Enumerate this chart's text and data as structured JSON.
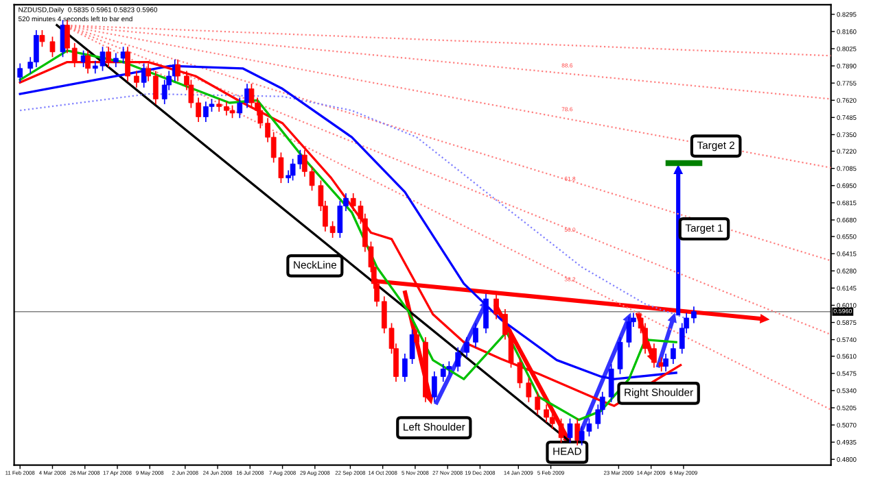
{
  "chart_data": {
    "type": "candlestick",
    "title": "NZDUSD,Daily  0.5835 0.5961 0.5823 0.5960",
    "subtitle": "520 minutes 4 seconds left to bar end",
    "xlim": [
      "2008-02-07",
      "2009-08-14"
    ],
    "ylim": [
      0.4755,
      0.837
    ],
    "xticks": [
      {
        "value": "2008-02-11",
        "label": "11 Feb 2008"
      },
      {
        "value": "2008-03-04",
        "label": "4 Mar 2008"
      },
      {
        "value": "2008-03-26",
        "label": "26 Mar 2008"
      },
      {
        "value": "2008-04-17",
        "label": "17 Apr 2008"
      },
      {
        "value": "2008-05-09",
        "label": "9 May 2008"
      },
      {
        "value": "2008-06-02",
        "label": "2 Jun 2008"
      },
      {
        "value": "2008-06-24",
        "label": "24 Jun 2008"
      },
      {
        "value": "2008-07-16",
        "label": "16 Jul 2008"
      },
      {
        "value": "2008-08-07",
        "label": "7 Aug 2008"
      },
      {
        "value": "2008-08-29",
        "label": "29 Aug 2008"
      },
      {
        "value": "2008-09-22",
        "label": "22 Sep 2008"
      },
      {
        "value": "2008-10-14",
        "label": "14 Oct 2008"
      },
      {
        "value": "2008-11-05",
        "label": "5 Nov 2008"
      },
      {
        "value": "2008-11-27",
        "label": "27 Nov 2008"
      },
      {
        "value": "2008-12-19",
        "label": "19 Dec 2008"
      },
      {
        "value": "2009-01-14",
        "label": "14 Jan 2009"
      },
      {
        "value": "2009-02-05",
        "label": "5 Feb 2009"
      },
      {
        "value": "2009-03-23",
        "label": "23 Mar 2009"
      },
      {
        "value": "2009-04-14",
        "label": "14 Apr 2009"
      },
      {
        "value": "2009-05-06",
        "label": "6 May 2009"
      }
    ],
    "yticks": [
      0.8295,
      {
        "value": 0.816,
        "label": "0.8160"
      },
      0.8025,
      {
        "value": 0.789,
        "label": "0.7890"
      },
      0.7755,
      {
        "value": 0.762,
        "label": "0.7620"
      },
      0.7485,
      {
        "value": 0.735,
        "label": "0.7350"
      },
      {
        "value": 0.722,
        "label": "0.7220"
      },
      0.7085,
      {
        "value": 0.695,
        "label": "0.6950"
      },
      0.6815,
      {
        "value": 0.668,
        "label": "0.6680"
      },
      {
        "value": 0.655,
        "label": "0.6550"
      },
      0.6415,
      {
        "value": 0.628,
        "label": "0.6280"
      },
      0.6145,
      {
        "value": 0.601,
        "label": "0.6010"
      },
      0.5875,
      {
        "value": 0.574,
        "label": "0.5740"
      },
      {
        "value": 0.561,
        "label": "0.5610"
      },
      0.5475,
      {
        "value": 0.534,
        "label": "0.5340"
      },
      0.5205,
      {
        "value": 0.507,
        "label": "0.5070"
      },
      0.4935,
      {
        "value": 0.48,
        "label": "0.4800"
      }
    ],
    "ref_lines": [
      {
        "axis": "y",
        "value": 0.596,
        "label": "0.5960",
        "color": "#808080"
      }
    ],
    "annotations": [
      {
        "text": "NeckLine",
        "x": "2008-08-29",
        "y": 0.632
      },
      "Left Shoulder",
      "HEAD",
      "Right Shoulder",
      {
        "text": "Target 1",
        "x": "2009-05-20",
        "y": 0.661
      },
      {
        "text": "Target 2",
        "x": "2009-05-28",
        "y": 0.726
      },
      "88.6",
      "78.6",
      {
        "text": "61.8",
        "x": "2009-02-18",
        "y": 0.7
      },
      {
        "text": "50.0",
        "x": "2009-02-18",
        "y": 0.66
      },
      {
        "text": "38.2",
        "x": "2009-02-18",
        "y": 0.621
      }
    ],
    "series": [
      {
        "type": "line",
        "color": "#ff8080",
        "line_style": "dotted",
        "x": [
          "2008-03-11",
          "2009-08-14"
        ],
        "values": [
          0.821,
          0.797
        ]
      },
      {
        "type": "line",
        "color": "#ff8080",
        "line_style": "dotted",
        "x": [
          "2008-03-11",
          "2009-08-14"
        ],
        "values": [
          0.821,
          0.763
        ]
      },
      {
        "type": "line",
        "color": "#ff8080",
        "line_style": "dotted",
        "x": [
          "2008-03-11",
          "2009-08-14"
        ],
        "values": [
          0.821,
          0.709
        ]
      },
      {
        "type": "line",
        "color": "#ff8080",
        "line_style": "dotted",
        "x": [
          "2008-03-11",
          "2009-08-14"
        ],
        "values": [
          0.821,
          0.636
        ]
      },
      {
        "type": "line",
        "color": "#ff8080",
        "line_style": "dotted",
        "x": [
          "2008-03-11",
          "2009-08-14"
        ],
        "values": [
          0.821,
          0.578
        ]
      },
      {
        "type": "line",
        "color": "#ff8080",
        "line_style": "dotted",
        "x": [
          "2008-03-11",
          "2009-08-14"
        ],
        "values": [
          0.821,
          0.519
        ]
      },
      {
        "type": "line",
        "color": "#000000",
        "line_style": "solid",
        "x": [
          "2008-03-07",
          "2009-02-20"
        ],
        "values": [
          0.821,
          0.492
        ]
      },
      {
        "type": "line",
        "color": "#8080ff",
        "line_style": "dotted",
        "x": [
          "2008-02-11",
          "2008-05-08",
          "2008-08-07",
          "2008-09-23",
          "2008-11-06",
          "2008-12-23",
          "2009-02-26",
          "2009-04-10",
          "2009-05-07"
        ],
        "values": [
          0.754,
          0.767,
          0.765,
          0.754,
          0.733,
          0.69,
          0.631,
          0.602,
          0.591
        ]
      },
      {
        "type": "line",
        "color": "#0000ff",
        "line_style": "solid",
        "x": [
          "2008-02-11",
          "2008-04-02",
          "2008-05-23",
          "2008-07-11",
          "2008-08-07",
          "2008-09-23",
          "2008-10-29",
          "2008-12-08",
          "2009-01-02",
          "2009-02-09",
          "2009-03-11",
          "2009-03-20",
          "2009-05-01"
        ],
        "values": [
          0.767,
          0.778,
          0.789,
          0.787,
          0.771,
          0.733,
          0.69,
          0.618,
          0.59,
          0.558,
          0.545,
          0.543,
          0.548
        ]
      },
      {
        "type": "line",
        "color": "#ff0000",
        "line_style": "solid",
        "x": [
          "2008-02-11",
          "2008-03-14",
          "2008-05-08",
          "2008-06-09",
          "2008-07-11",
          "2008-08-07",
          "2008-09-09",
          "2008-10-06",
          "2008-10-20",
          "2008-11-17",
          "2008-12-08",
          "2009-01-02",
          "2009-01-28",
          "2009-03-11",
          "2009-03-20",
          "2009-04-14",
          "2009-05-04"
        ],
        "values": [
          0.776,
          0.792,
          0.792,
          0.781,
          0.76,
          0.744,
          0.701,
          0.658,
          0.653,
          0.594,
          0.572,
          0.559,
          0.547,
          0.526,
          0.522,
          0.54,
          0.554
        ]
      },
      {
        "type": "line",
        "color": "#00c000",
        "line_style": "solid",
        "x": [
          "2008-02-11",
          "2008-03-14",
          "2008-04-21",
          "2008-05-27",
          "2008-07-02",
          "2008-07-21",
          "2008-08-21",
          "2008-09-23",
          "2008-10-10",
          "2008-10-31",
          "2008-11-17",
          "2008-12-08",
          "2009-01-06",
          "2009-01-28",
          "2009-02-24",
          "2009-03-11",
          "2009-03-30",
          "2009-04-10",
          "2009-05-01"
        ],
        "values": [
          0.778,
          0.801,
          0.792,
          0.776,
          0.76,
          0.762,
          0.717,
          0.674,
          0.631,
          0.597,
          0.558,
          0.543,
          0.58,
          0.529,
          0.511,
          0.518,
          0.543,
          0.574,
          0.572
        ]
      },
      {
        "x": [
          "2008-02-11",
          "2008-02-18",
          "2008-02-22",
          "2008-02-26",
          "2008-03-04",
          "2008-03-11",
          "2008-03-14",
          "2008-03-19",
          "2008-03-25",
          "2008-03-28",
          "2008-04-02",
          "2008-04-07",
          "2008-04-11",
          "2008-04-16",
          "2008-04-21",
          "2008-04-24",
          "2008-04-30",
          "2008-05-05",
          "2008-05-08",
          "2008-05-13",
          "2008-05-19",
          "2008-05-22",
          "2008-05-26",
          "2008-05-28",
          "2008-06-03",
          "2008-06-06",
          "2008-06-11",
          "2008-06-16",
          "2008-06-20",
          "2008-06-25",
          "2008-06-30",
          "2008-07-04",
          "2008-07-09",
          "2008-07-14",
          "2008-07-17",
          "2008-07-21",
          "2008-07-23",
          "2008-07-28",
          "2008-08-01",
          "2008-08-06",
          "2008-08-11",
          "2008-08-14",
          "2008-08-19",
          "2008-08-22",
          "2008-08-27",
          "2008-09-02",
          "2008-09-05",
          "2008-09-10",
          "2008-09-15",
          "2008-09-19",
          "2008-09-24",
          "2008-09-29",
          "2008-10-02",
          "2008-10-06",
          "2008-10-08",
          "2008-10-10",
          "2008-10-15",
          "2008-10-20",
          "2008-10-23",
          "2008-10-29",
          "2008-11-03",
          "2008-11-06",
          "2008-11-12",
          "2008-11-18",
          "2008-11-24",
          "2008-11-28",
          "2008-12-04",
          "2008-12-10",
          "2008-12-16",
          "2008-12-23",
          "2008-12-30",
          "2009-01-05",
          "2009-01-09",
          "2009-01-15",
          "2009-01-21",
          "2009-01-27",
          "2009-02-02",
          "2009-02-06",
          "2009-02-12",
          "2009-02-18",
          "2009-02-23",
          "2009-02-26",
          "2009-03-03",
          "2009-03-09",
          "2009-03-12",
          "2009-03-18",
          "2009-03-24",
          "2009-03-30",
          "2009-04-02",
          "2009-04-07",
          "2009-04-10",
          "2009-04-16",
          "2009-04-21",
          "2009-04-24",
          "2009-04-29",
          "2009-05-05",
          "2009-05-08",
          "2009-05-13"
        ],
        "ohlc": [
          [
            0.78,
            0.791,
            0.776,
            0.787
          ],
          [
            0.787,
            0.796,
            0.783,
            0.792
          ],
          [
            0.792,
            0.817,
            0.788,
            0.813
          ],
          [
            0.813,
            0.817,
            0.804,
            0.808
          ],
          [
            0.808,
            0.812,
            0.796,
            0.8
          ],
          [
            0.8,
            0.825,
            0.796,
            0.821
          ],
          [
            0.821,
            0.825,
            0.799,
            0.803
          ],
          [
            0.803,
            0.807,
            0.788,
            0.792
          ],
          [
            0.792,
            0.801,
            0.788,
            0.797
          ],
          [
            0.797,
            0.801,
            0.783,
            0.787
          ],
          [
            0.787,
            0.793,
            0.783,
            0.789
          ],
          [
            0.789,
            0.804,
            0.785,
            0.8
          ],
          [
            0.8,
            0.804,
            0.788,
            0.792
          ],
          [
            0.792,
            0.799,
            0.788,
            0.795
          ],
          [
            0.795,
            0.804,
            0.791,
            0.8
          ],
          [
            0.8,
            0.804,
            0.777,
            0.781
          ],
          [
            0.781,
            0.785,
            0.772,
            0.776
          ],
          [
            0.776,
            0.791,
            0.772,
            0.787
          ],
          [
            0.787,
            0.791,
            0.777,
            0.781
          ],
          [
            0.781,
            0.785,
            0.759,
            0.763
          ],
          [
            0.763,
            0.778,
            0.759,
            0.774
          ],
          [
            0.774,
            0.785,
            0.77,
            0.781
          ],
          [
            0.781,
            0.794,
            0.777,
            0.79
          ],
          [
            0.79,
            0.794,
            0.777,
            0.781
          ],
          [
            0.781,
            0.785,
            0.77,
            0.774
          ],
          [
            0.774,
            0.778,
            0.756,
            0.76
          ],
          [
            0.76,
            0.764,
            0.745,
            0.749
          ],
          [
            0.749,
            0.761,
            0.745,
            0.757
          ],
          [
            0.757,
            0.763,
            0.753,
            0.759
          ],
          [
            0.759,
            0.763,
            0.753,
            0.757
          ],
          [
            0.757,
            0.761,
            0.75,
            0.754
          ],
          [
            0.754,
            0.758,
            0.748,
            0.752
          ],
          [
            0.752,
            0.764,
            0.748,
            0.76
          ],
          [
            0.76,
            0.775,
            0.756,
            0.771
          ],
          [
            0.771,
            0.775,
            0.756,
            0.76
          ],
          [
            0.76,
            0.764,
            0.75,
            0.754
          ],
          [
            0.754,
            0.758,
            0.74,
            0.744
          ],
          [
            0.744,
            0.748,
            0.729,
            0.733
          ],
          [
            0.733,
            0.737,
            0.713,
            0.717
          ],
          [
            0.717,
            0.721,
            0.697,
            0.701
          ],
          [
            0.701,
            0.707,
            0.697,
            0.703
          ],
          [
            0.703,
            0.716,
            0.699,
            0.712
          ],
          [
            0.712,
            0.723,
            0.708,
            0.719
          ],
          [
            0.719,
            0.723,
            0.702,
            0.706
          ],
          [
            0.706,
            0.71,
            0.691,
            0.695
          ],
          [
            0.695,
            0.699,
            0.675,
            0.679
          ],
          [
            0.679,
            0.683,
            0.659,
            0.663
          ],
          [
            0.663,
            0.667,
            0.654,
            0.658
          ],
          [
            0.658,
            0.683,
            0.654,
            0.679
          ],
          [
            0.679,
            0.689,
            0.675,
            0.685
          ],
          [
            0.685,
            0.689,
            0.675,
            0.679
          ],
          [
            0.679,
            0.683,
            0.665,
            0.669
          ],
          [
            0.669,
            0.673,
            0.643,
            0.647
          ],
          [
            0.647,
            0.651,
            0.627,
            0.631
          ],
          [
            0.631,
            0.635,
            0.614,
            0.618
          ],
          [
            0.618,
            0.622,
            0.6,
            0.604
          ],
          [
            0.604,
            0.608,
            0.579,
            0.583
          ],
          [
            0.583,
            0.587,
            0.563,
            0.567
          ],
          [
            0.567,
            0.571,
            0.541,
            0.545
          ],
          [
            0.545,
            0.563,
            0.541,
            0.559
          ],
          [
            0.559,
            0.582,
            0.555,
            0.578
          ],
          [
            0.578,
            0.582,
            0.568,
            0.572
          ],
          [
            0.572,
            0.576,
            0.525,
            0.529
          ],
          [
            0.529,
            0.549,
            0.525,
            0.545
          ],
          [
            0.545,
            0.555,
            0.541,
            0.551
          ],
          [
            0.551,
            0.557,
            0.547,
            0.553
          ],
          [
            0.553,
            0.568,
            0.549,
            0.564
          ],
          [
            0.564,
            0.576,
            0.56,
            0.572
          ],
          [
            0.572,
            0.587,
            0.568,
            0.583
          ],
          [
            0.583,
            0.61,
            0.579,
            0.606
          ],
          [
            0.606,
            0.61,
            0.59,
            0.594
          ],
          [
            0.594,
            0.598,
            0.574,
            0.578
          ],
          [
            0.578,
            0.582,
            0.552,
            0.556
          ],
          [
            0.556,
            0.56,
            0.536,
            0.54
          ],
          [
            0.54,
            0.544,
            0.525,
            0.529
          ],
          [
            0.529,
            0.533,
            0.515,
            0.519
          ],
          [
            0.519,
            0.523,
            0.509,
            0.513
          ],
          [
            0.513,
            0.517,
            0.504,
            0.508
          ],
          [
            0.508,
            0.512,
            0.493,
            0.497
          ],
          [
            0.497,
            0.512,
            0.493,
            0.508
          ],
          [
            0.508,
            0.512,
            0.491,
            0.495
          ],
          [
            0.495,
            0.506,
            0.491,
            0.502
          ],
          [
            0.502,
            0.512,
            0.498,
            0.508
          ],
          [
            0.508,
            0.523,
            0.504,
            0.519
          ],
          [
            0.519,
            0.533,
            0.515,
            0.529
          ],
          [
            0.529,
            0.555,
            0.525,
            0.551
          ],
          [
            0.551,
            0.576,
            0.547,
            0.572
          ],
          [
            0.572,
            0.592,
            0.568,
            0.588
          ],
          [
            0.588,
            0.595,
            0.584,
            0.591
          ],
          [
            0.591,
            0.595,
            0.579,
            0.583
          ],
          [
            0.583,
            0.587,
            0.563,
            0.567
          ],
          [
            0.567,
            0.571,
            0.552,
            0.556
          ],
          [
            0.556,
            0.56,
            0.549,
            0.553
          ],
          [
            0.553,
            0.563,
            0.549,
            0.559
          ],
          [
            0.559,
            0.571,
            0.555,
            0.567
          ],
          [
            0.567,
            0.587,
            0.563,
            0.583
          ],
          [
            0.583,
            0.595,
            0.579,
            0.591
          ],
          [
            0.591,
            0.6,
            0.587,
            0.596
          ]
        ],
        "colors": [
          "#0000ff",
          "#0000ff",
          "#0000ff",
          "#ff0000",
          "#ff0000",
          "#0000ff",
          "#ff0000",
          "#ff0000",
          "#0000ff",
          "#ff0000",
          "#0000ff",
          "#0000ff",
          "#ff0000",
          "#0000ff",
          "#0000ff",
          "#ff0000",
          "#ff0000",
          "#0000ff",
          "#ff0000",
          "#ff0000",
          "#0000ff",
          "#0000ff",
          "#0000ff",
          "#ff0000",
          "#ff0000",
          "#ff0000",
          "#ff0000",
          "#0000ff",
          "#0000ff",
          "#ff0000",
          "#ff0000",
          "#ff0000",
          "#0000ff",
          "#0000ff",
          "#ff0000",
          "#ff0000",
          "#ff0000",
          "#ff0000",
          "#ff0000",
          "#ff0000",
          "#0000ff",
          "#0000ff",
          "#0000ff",
          "#ff0000",
          "#ff0000",
          "#ff0000",
          "#ff0000",
          "#ff0000",
          "#0000ff",
          "#0000ff",
          "#ff0000",
          "#ff0000",
          "#ff0000",
          "#ff0000",
          "#ff0000",
          "#ff0000",
          "#ff0000",
          "#ff0000",
          "#ff0000",
          "#0000ff",
          "#0000ff",
          "#ff0000",
          "#ff0000",
          "#0000ff",
          "#0000ff",
          "#0000ff",
          "#0000ff",
          "#0000ff",
          "#0000ff",
          "#0000ff",
          "#ff0000",
          "#ff0000",
          "#ff0000",
          "#ff0000",
          "#ff0000",
          "#ff0000",
          "#ff0000",
          "#ff0000",
          "#ff0000",
          "#0000ff",
          "#ff0000",
          "#0000ff",
          "#0000ff",
          "#0000ff",
          "#0000ff",
          "#0000ff",
          "#0000ff",
          "#0000ff",
          "#0000ff",
          "#ff0000",
          "#ff0000",
          "#ff0000",
          "#ff0000",
          "#0000ff",
          "#0000ff",
          "#0000ff",
          "#0000ff",
          "#0000ff"
        ]
      }
    ]
  }
}
